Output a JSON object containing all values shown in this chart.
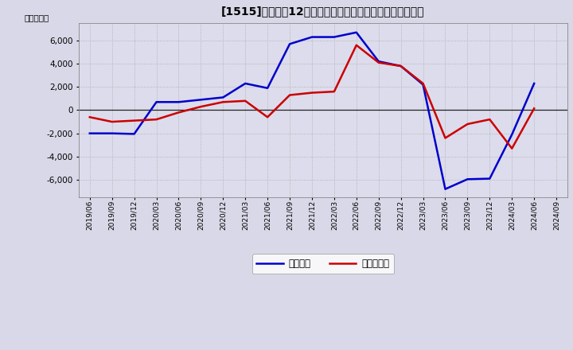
{
  "title": "[1515]　利益の12か月移動合計の対前年同期増減額の推移",
  "ylabel": "（百万円）",
  "dates": [
    "2019/06",
    "2019/09",
    "2019/12",
    "2020/03",
    "2020/06",
    "2020/09",
    "2020/12",
    "2021/03",
    "2021/06",
    "2021/09",
    "2021/12",
    "2022/03",
    "2022/06",
    "2022/09",
    "2022/12",
    "2023/03",
    "2023/06",
    "2023/09",
    "2023/12",
    "2024/03",
    "2024/06",
    "2024/09"
  ],
  "keijo_rieki": [
    -2000,
    -2000,
    -2050,
    700,
    700,
    900,
    1100,
    2300,
    1900,
    5700,
    6300,
    6300,
    6700,
    4200,
    3800,
    2200,
    -6800,
    -5950,
    -5900,
    -2100,
    2300,
    null
  ],
  "junrieki": [
    -600,
    -1000,
    -900,
    -800,
    -200,
    300,
    700,
    800,
    -600,
    1300,
    1500,
    1600,
    5600,
    4100,
    3800,
    2300,
    -2400,
    -1200,
    -800,
    -3300,
    150,
    null
  ],
  "keijo_color": "#0000cc",
  "junrieki_color": "#cc0000",
  "ylim": [
    -7500,
    7500
  ],
  "yticks": [
    -6000,
    -4000,
    -2000,
    0,
    2000,
    4000,
    6000
  ],
  "bg_color": "#d8d8e8",
  "plot_bg_color": "#dcdcec",
  "grid_color": "#aaaaaa",
  "legend_labels": [
    "経常利益",
    "当期純利益"
  ],
  "line_width": 1.8
}
